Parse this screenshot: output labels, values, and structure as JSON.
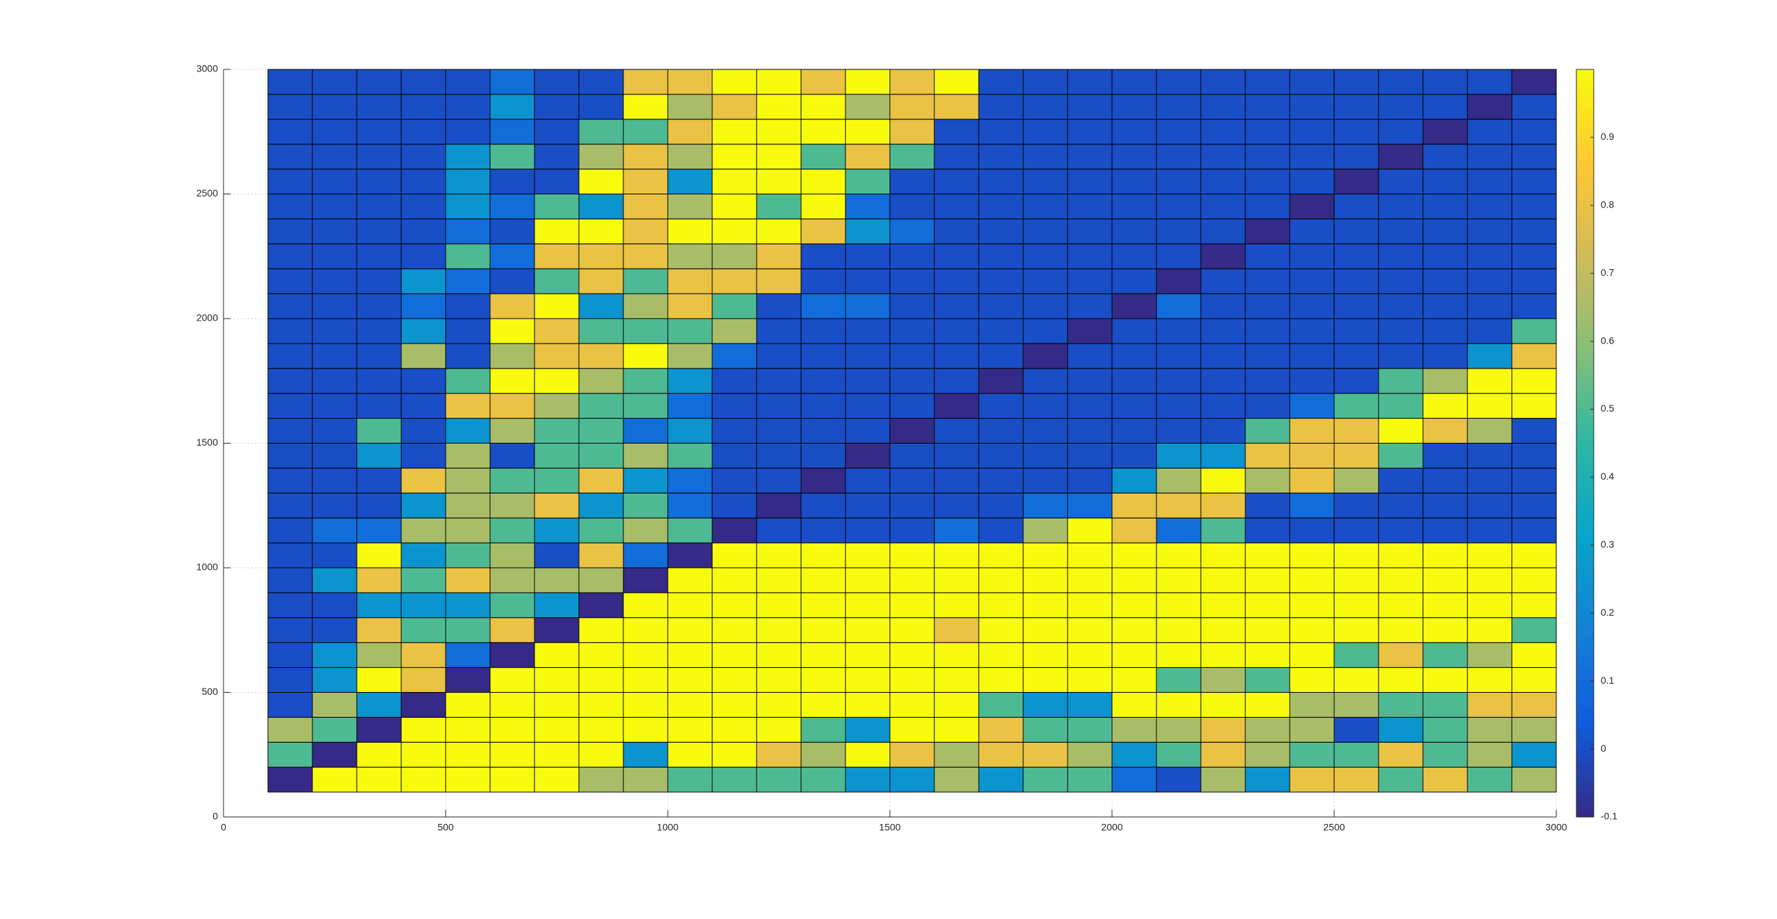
{
  "chart_data": {
    "type": "heatmap",
    "x_edges": [
      100,
      200,
      300,
      400,
      500,
      600,
      700,
      800,
      900,
      1000,
      1100,
      1200,
      1300,
      1400,
      1500,
      1600,
      1700,
      1800,
      1900,
      2000,
      2100,
      2200,
      2300,
      2400,
      2500,
      2600,
      2700,
      2800,
      2900,
      3000
    ],
    "y_edges": [
      100,
      200,
      300,
      400,
      500,
      600,
      700,
      800,
      900,
      1000,
      1100,
      1200,
      1300,
      1400,
      1500,
      1600,
      1700,
      1800,
      1900,
      2000,
      2100,
      2200,
      2300,
      2400,
      2500,
      2600,
      2700,
      2800,
      2900,
      3000
    ],
    "values": [
      [
        -0.1,
        1,
        1,
        1,
        1,
        1,
        1,
        0.65,
        0.65,
        0.5,
        0.5,
        0.5,
        0.5,
        0.25,
        0.25,
        0.65,
        0.25,
        0.5,
        0.5,
        0.1,
        0,
        0.65,
        0.25,
        0.8,
        0.8,
        0.5,
        0.8,
        0.5,
        0.65
      ],
      [
        0.5,
        -0.1,
        1,
        1,
        1,
        1,
        1,
        1,
        0.25,
        1,
        1,
        0.8,
        0.65,
        1,
        0.8,
        0.65,
        0.8,
        0.8,
        0.65,
        0.25,
        0.5,
        0.8,
        0.65,
        0.5,
        0.5,
        0.8,
        0.5,
        0.65,
        0.25
      ],
      [
        0.65,
        0.5,
        -0.1,
        1,
        1,
        1,
        1,
        1,
        1,
        1,
        1,
        1,
        0.5,
        0.25,
        1,
        1,
        0.8,
        0.5,
        0.5,
        0.65,
        0.65,
        0.8,
        0.65,
        0.65,
        0,
        0.25,
        0.5,
        0.65,
        0.65
      ],
      [
        0,
        0.65,
        0.25,
        -0.1,
        1,
        1,
        1,
        1,
        1,
        1,
        1,
        1,
        1,
        1,
        1,
        1,
        0.5,
        0.25,
        0.25,
        1,
        1,
        1,
        1,
        0.65,
        0.65,
        0.5,
        0.5,
        0.8,
        0.8
      ],
      [
        0,
        0.25,
        1,
        0.8,
        -0.1,
        1,
        1,
        1,
        1,
        1,
        1,
        1,
        1,
        1,
        1,
        1,
        1,
        1,
        1,
        1,
        0.5,
        0.65,
        0.5,
        1,
        1,
        1,
        1,
        1,
        1
      ],
      [
        0,
        0.25,
        0.65,
        0.8,
        0.1,
        -0.1,
        1,
        1,
        1,
        1,
        1,
        1,
        1,
        1,
        1,
        1,
        1,
        1,
        1,
        1,
        1,
        1,
        1,
        1,
        0.5,
        0.8,
        0.5,
        0.65,
        1
      ],
      [
        0,
        0,
        0.8,
        0.5,
        0.5,
        0.8,
        -0.1,
        1,
        1,
        1,
        1,
        1,
        1,
        1,
        1,
        0.8,
        1,
        1,
        1,
        1,
        1,
        1,
        1,
        1,
        1,
        1,
        1,
        1,
        0.5
      ],
      [
        0,
        0,
        0.25,
        0.25,
        0.25,
        0.5,
        0.25,
        -0.1,
        1,
        1,
        1,
        1,
        1,
        1,
        1,
        1,
        1,
        1,
        1,
        1,
        1,
        1,
        1,
        1,
        1,
        1,
        1,
        1,
        1
      ],
      [
        0,
        0.25,
        0.8,
        0.5,
        0.8,
        0.65,
        0.65,
        0.65,
        -0.1,
        1,
        1,
        1,
        1,
        1,
        1,
        1,
        1,
        1,
        1,
        1,
        1,
        1,
        1,
        1,
        1,
        1,
        1,
        1,
        1
      ],
      [
        0,
        0,
        1,
        0.25,
        0.5,
        0.65,
        0,
        0.8,
        0.1,
        -0.1,
        1,
        1,
        1,
        1,
        1,
        1,
        1,
        1,
        1,
        1,
        1,
        1,
        1,
        1,
        1,
        1,
        1,
        1,
        1
      ],
      [
        0,
        0.1,
        0.1,
        0.65,
        0.65,
        0.5,
        0.25,
        0.5,
        0.65,
        0.5,
        -0.1,
        0,
        0,
        0,
        0,
        0.1,
        0,
        0.65,
        1,
        0.8,
        0.1,
        0.5,
        0,
        0,
        0,
        0,
        0,
        0,
        0
      ],
      [
        0,
        0,
        0,
        0.25,
        0.65,
        0.65,
        0.8,
        0.25,
        0.5,
        0.1,
        0,
        -0.1,
        0,
        0,
        0,
        0,
        0,
        0.1,
        0.1,
        0.8,
        0.8,
        0.8,
        0,
        0.1,
        0,
        0,
        0,
        0,
        0
      ],
      [
        0,
        0,
        0,
        0.8,
        0.65,
        0.5,
        0.5,
        0.8,
        0.25,
        0.1,
        0,
        0,
        -0.1,
        0,
        0,
        0,
        0,
        0,
        0,
        0.25,
        0.65,
        1,
        0.65,
        0.8,
        0.65,
        0,
        0,
        0,
        0
      ],
      [
        0,
        0,
        0.25,
        0,
        0.65,
        0,
        0.5,
        0.5,
        0.65,
        0.5,
        0,
        0,
        0,
        -0.1,
        0,
        0,
        0,
        0,
        0,
        0,
        0.25,
        0.25,
        0.8,
        0.8,
        0.8,
        0.5,
        0,
        0,
        0
      ],
      [
        0,
        0,
        0.5,
        0,
        0.25,
        0.65,
        0.5,
        0.5,
        0.1,
        0.25,
        0,
        0,
        0,
        0,
        -0.1,
        0,
        0,
        0,
        0,
        0,
        0,
        0,
        0.5,
        0.8,
        0.8,
        1,
        0.8,
        0.65,
        0
      ],
      [
        0,
        0,
        0,
        0,
        0.8,
        0.8,
        0.65,
        0.5,
        0.5,
        0.1,
        0,
        0,
        0,
        0,
        0,
        -0.1,
        0,
        0,
        0,
        0,
        0,
        0,
        0,
        0.1,
        0.5,
        0.5,
        1,
        1,
        1
      ],
      [
        0,
        0,
        0,
        0,
        0.5,
        1,
        1,
        0.65,
        0.5,
        0.25,
        0,
        0,
        0,
        0,
        0,
        0,
        -0.1,
        0,
        0,
        0,
        0,
        0,
        0,
        0,
        0,
        0.5,
        0.65,
        1,
        1
      ],
      [
        0,
        0,
        0,
        0.65,
        0,
        0.65,
        0.8,
        0.8,
        1,
        0.65,
        0.1,
        0,
        0,
        0,
        0,
        0,
        0,
        -0.1,
        0,
        0,
        0,
        0,
        0,
        0,
        0,
        0,
        0,
        0.25,
        0.8
      ],
      [
        0,
        0,
        0,
        0.25,
        0,
        1,
        0.8,
        0.5,
        0.5,
        0.5,
        0.65,
        0,
        0,
        0,
        0,
        0,
        0,
        0,
        -0.1,
        0,
        0,
        0,
        0,
        0,
        0,
        0,
        0,
        0,
        0.5
      ],
      [
        0,
        0,
        0,
        0.1,
        0,
        0.8,
        1,
        0.25,
        0.65,
        0.8,
        0.5,
        0,
        0.1,
        0.1,
        0,
        0,
        0,
        0,
        0,
        -0.1,
        0.1,
        0,
        0,
        0,
        0,
        0,
        0,
        0,
        0
      ],
      [
        0,
        0,
        0,
        0.25,
        0.1,
        0,
        0.5,
        0.8,
        0.5,
        0.8,
        0.8,
        0.8,
        0,
        0,
        0,
        0,
        0,
        0,
        0,
        0,
        -0.1,
        0,
        0,
        0,
        0,
        0,
        0,
        0,
        0
      ],
      [
        0,
        0,
        0,
        0,
        0.5,
        0.1,
        0.8,
        0.8,
        0.8,
        0.65,
        0.65,
        0.8,
        0,
        0,
        0,
        0,
        0,
        0,
        0,
        0,
        0,
        -0.1,
        0,
        0,
        0,
        0,
        0,
        0,
        0
      ],
      [
        0,
        0,
        0,
        0,
        0.1,
        0,
        1,
        1,
        0.8,
        1,
        1,
        1,
        0.8,
        0.25,
        0.1,
        0,
        0,
        0,
        0,
        0,
        0,
        0,
        -0.1,
        0,
        0,
        0,
        0,
        0,
        0
      ],
      [
        0,
        0,
        0,
        0,
        0.25,
        0.1,
        0.5,
        0.25,
        0.8,
        0.65,
        1,
        0.5,
        1,
        0.1,
        0,
        0,
        0,
        0,
        0,
        0,
        0,
        0,
        0,
        -0.1,
        0,
        0,
        0,
        0,
        0
      ],
      [
        0,
        0,
        0,
        0,
        0.25,
        0,
        0,
        1,
        0.8,
        0.25,
        1,
        1,
        1,
        0.5,
        0,
        0,
        0,
        0,
        0,
        0,
        0,
        0,
        0,
        0,
        -0.1,
        0,
        0,
        0,
        0
      ],
      [
        0,
        0,
        0,
        0,
        0.25,
        0.5,
        0,
        0.65,
        0.8,
        0.65,
        1,
        1,
        0.5,
        0.8,
        0.5,
        0,
        0,
        0,
        0,
        0,
        0,
        0,
        0,
        0,
        0,
        -0.1,
        0,
        0,
        0
      ],
      [
        0,
        0,
        0,
        0,
        0,
        0.1,
        0,
        0.5,
        0.5,
        0.8,
        1,
        1,
        1,
        1,
        0.8,
        0,
        0,
        0,
        0,
        0,
        0,
        0,
        0,
        0,
        0,
        0,
        -0.1,
        0,
        0
      ],
      [
        0,
        0,
        0,
        0,
        0,
        0.25,
        0,
        0,
        1,
        0.65,
        0.8,
        1,
        1,
        0.65,
        0.8,
        0.8,
        0,
        0,
        0,
        0,
        0,
        0,
        0,
        0,
        0,
        0,
        0,
        -0.1,
        0
      ],
      [
        0,
        0,
        0,
        0,
        0,
        0.1,
        0,
        0,
        0.8,
        0.8,
        1,
        1,
        0.8,
        1,
        0.8,
        1,
        0,
        0,
        0,
        0,
        0,
        0,
        0,
        0,
        0,
        0,
        0,
        0,
        -0.1
      ]
    ],
    "xlim": [
      0,
      3000
    ],
    "xticks": [
      0,
      500,
      1000,
      1500,
      2000,
      2500,
      3000
    ],
    "ylim": [
      0,
      3000
    ],
    "yticks": [
      0,
      500,
      1000,
      1500,
      2000,
      2500,
      3000
    ],
    "clim": [
      -0.1,
      1
    ],
    "cticks": [
      -0.1,
      0,
      0.1,
      0.2,
      0.3,
      0.4,
      0.5,
      0.6,
      0.7,
      0.8,
      0.9
    ],
    "colormap": [
      "#352a87",
      "#0f5cdd",
      "#1481d6",
      "#06a4ca",
      "#2eb7a4",
      "#87bf77",
      "#d1bb59",
      "#fec832",
      "#f9fb0e"
    ],
    "grid": true,
    "colorbar": true
  }
}
